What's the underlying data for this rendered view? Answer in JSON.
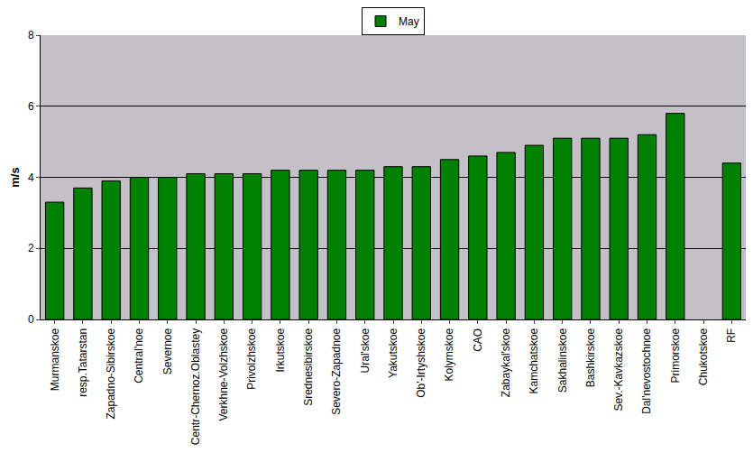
{
  "chart_data": {
    "type": "bar",
    "y_label": "m/s",
    "categories": [
      "Murmanskoe",
      "resp.Tatarstan",
      "Zapadno-Sibirskoe",
      "Central'noe",
      "Severnoe",
      "Centr-Chernoz.Oblastey",
      "Verkhne-Volzhskoe",
      "Privolzhskoe",
      "Irkutskoe",
      "Srednesibirskoe",
      "Severo-Zapadnoe",
      "Ural'skoe",
      "Yakutskoe",
      "Ob'-Irtyshskoe",
      "Kolymskoe",
      "CAO",
      "Zabaykal'skoe",
      "Kamchatskoe",
      "Sakhalinskoe",
      "Bashkirskoe",
      "Sev.-Kavkazskoe",
      "Dal'nevostochnoe",
      "Primorskoe",
      "Chukotskoe",
      "RF"
    ],
    "series": [
      {
        "name": "May",
        "color": "#008000",
        "values": [
          3.3,
          3.7,
          3.9,
          4.0,
          4.0,
          4.1,
          4.1,
          4.1,
          4.2,
          4.2,
          4.2,
          4.2,
          4.3,
          4.3,
          4.5,
          4.6,
          4.7,
          4.9,
          5.1,
          5.1,
          5.1,
          5.2,
          5.8,
          null,
          4.4
        ]
      }
    ],
    "ylim": [
      0,
      8
    ],
    "yticks": [
      0,
      2,
      4,
      6,
      8
    ],
    "grid": true,
    "legend": "top"
  }
}
